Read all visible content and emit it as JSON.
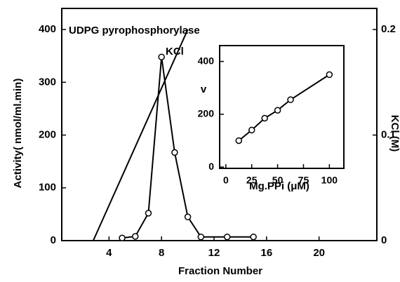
{
  "chart_data": [
    {
      "type": "line",
      "xlabel": "Fraction Number",
      "ylabel": "Activity( nmol/ml.min)",
      "y2label": "KCl (M)",
      "xlim": [
        0.4,
        24.4
      ],
      "xticks": [
        4,
        8,
        12,
        16,
        20
      ],
      "ylim": [
        0,
        440
      ],
      "yticks": [
        0,
        100,
        200,
        300,
        400
      ],
      "y2lim": [
        0,
        0.22
      ],
      "y2ticks": [
        0,
        0.1,
        0.2
      ],
      "series": [
        {
          "name": "UDPG pyrophosphorylase",
          "color": "#000000",
          "markers": true,
          "x": [
            5,
            6,
            7,
            8,
            9,
            10,
            11,
            13,
            15
          ],
          "values": [
            5,
            8,
            52,
            348,
            167,
            45,
            7,
            7,
            7
          ]
        },
        {
          "name": "KCl",
          "color": "#000000",
          "markers": false,
          "axis": "y2",
          "x": [
            2.8,
            10
          ],
          "values": [
            0,
            0.2
          ]
        }
      ]
    },
    {
      "type": "line",
      "xlabel": "Mg.PPi (μM)",
      "ylabel": "v",
      "xlim": [
        -6,
        114
      ],
      "xticks": [
        0,
        25,
        50,
        75,
        100
      ],
      "ylim": [
        -5,
        460
      ],
      "yticks": [
        0,
        200,
        400
      ],
      "series": [
        {
          "color": "#000000",
          "markers": true,
          "x": [
            12.5,
            25,
            37.5,
            50,
            62.5,
            100
          ],
          "values": [
            100,
            140,
            185,
            215,
            255,
            350
          ]
        }
      ]
    }
  ]
}
